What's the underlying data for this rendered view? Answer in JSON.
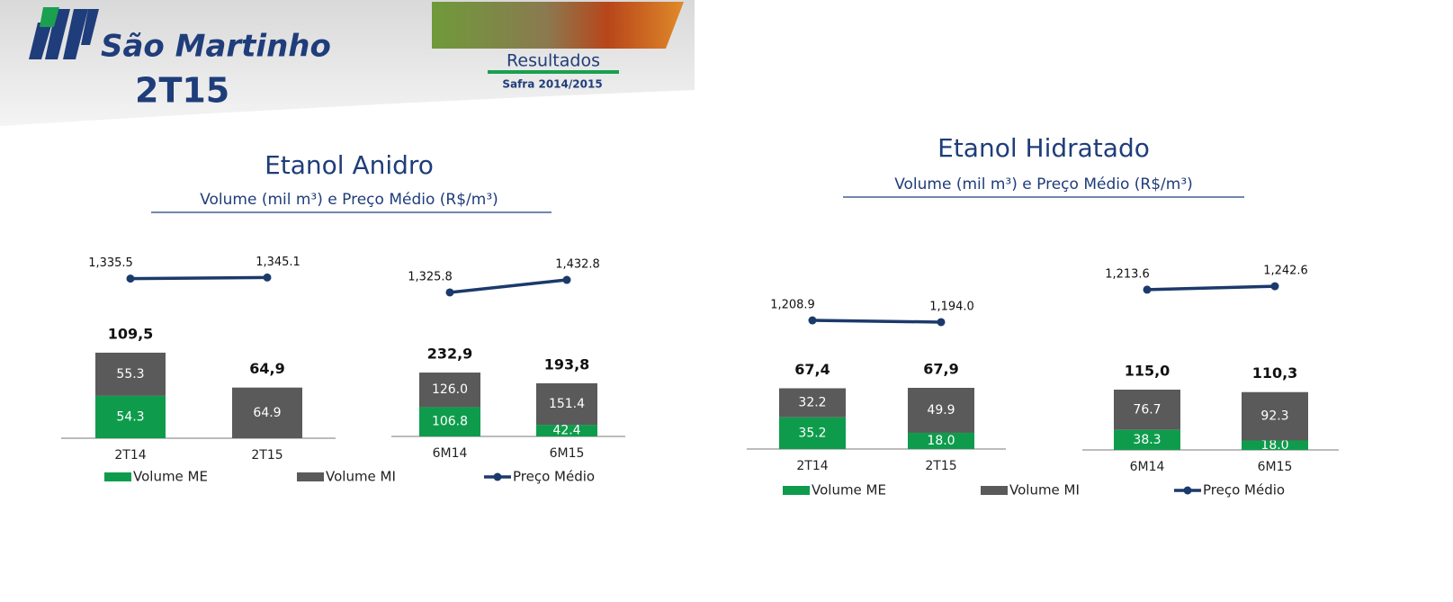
{
  "header": {
    "brand": "São Martinho",
    "period": "2T15",
    "section": "Resultados",
    "season": "Safra 2014/2015"
  },
  "chart_data": [
    {
      "type": "bar-line",
      "title": "Etanol Anidro",
      "subtitle": "Volume (mil m³) e Preço Médio (R$/m³)",
      "categories": [
        "2T14",
        "2T15",
        "6M14",
        "6M15"
      ],
      "series": [
        {
          "name": "Volume ME",
          "color": "#0e9c4c",
          "values": [
            54.3,
            null,
            106.8,
            42.4
          ]
        },
        {
          "name": "Volume MI",
          "color": "#5a5a5a",
          "values": [
            55.3,
            64.9,
            126.0,
            151.4
          ],
          "value_labels": [
            "55.3",
            "64.9",
            "126.0",
            "151.4"
          ]
        },
        {
          "name": "Preço Médio",
          "color": "#1b3a6b",
          "values": [
            1335.5,
            1345.1,
            1325.8,
            1432.8
          ],
          "value_labels": [
            "1,335.5",
            "1,345.1",
            "1,325.8",
            "1,432.8"
          ]
        }
      ],
      "totals": {
        "values": [
          109.5,
          64.9,
          232.9,
          193.8
        ],
        "value_labels": [
          "109,5",
          "64,9",
          "232,9",
          "193,8"
        ]
      }
    },
    {
      "type": "bar-line",
      "title": "Etanol Hidratado",
      "subtitle": "Volume (mil m³) e Preço Médio (R$/m³)",
      "categories": [
        "2T14",
        "2T15",
        "6M14",
        "6M15"
      ],
      "series": [
        {
          "name": "Volume ME",
          "color": "#0e9c4c",
          "values": [
            35.2,
            18.0,
            38.3,
            18.0
          ],
          "value_labels": [
            "35.2",
            "18.0",
            "38.3",
            "18.0"
          ]
        },
        {
          "name": "Volume MI",
          "color": "#5a5a5a",
          "values": [
            32.2,
            49.9,
            76.7,
            92.3
          ]
        },
        {
          "name": "Preço Médio",
          "color": "#1b3a6b",
          "values": [
            1208.9,
            1194.0,
            1213.6,
            1242.6
          ],
          "value_labels": [
            "1,208.9",
            "1,194.0",
            "1,213.6",
            "1,242.6"
          ]
        }
      ],
      "totals": {
        "values": [
          67.4,
          67.9,
          115.0,
          110.3
        ],
        "value_labels": [
          "67,4",
          "67,9",
          "115,0",
          "110,3"
        ]
      }
    }
  ]
}
